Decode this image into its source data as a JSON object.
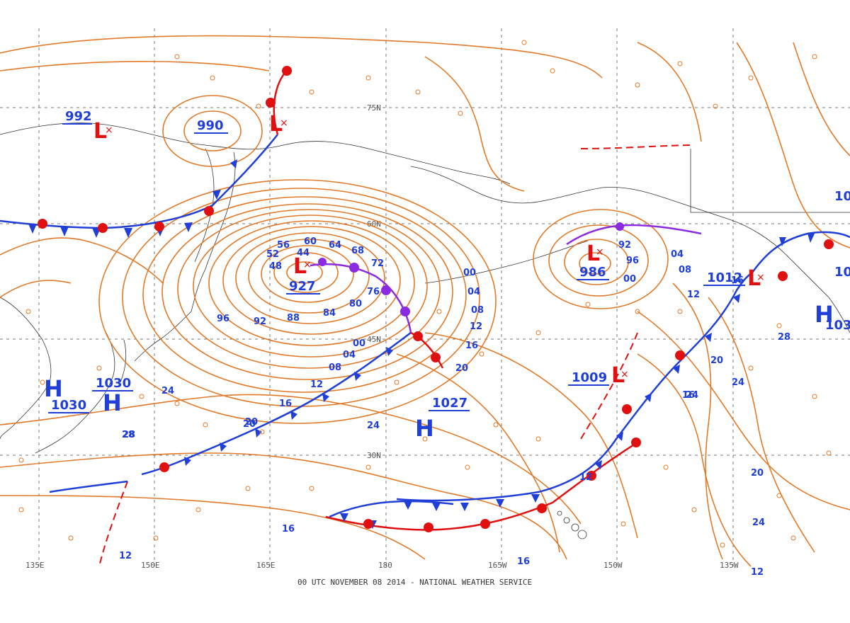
{
  "footer": "00 UTC NOVEMBER 08 2014 - NATIONAL WEATHER SERVICE",
  "colors": {
    "isobar": "#e07a2a",
    "high": "#1f3fd8",
    "low": "#e01010",
    "cold_front": "#1f3fd8",
    "warm_front": "#e01010",
    "occluded_front": "#8a2be2",
    "grid": "#777777"
  },
  "longitude_labels": [
    "135E",
    "150E",
    "165E",
    "180",
    "165W",
    "150W",
    "135W"
  ],
  "latitude_labels": [
    "75N",
    "60N",
    "45N",
    "30N"
  ],
  "pressure_centers": [
    {
      "type": "L",
      "value": "992"
    },
    {
      "type": "L",
      "value": "990"
    },
    {
      "type": "L",
      "value": "927"
    },
    {
      "type": "L",
      "value": "986"
    },
    {
      "type": "L",
      "value": "1012"
    },
    {
      "type": "L",
      "value": "1009"
    },
    {
      "type": "H",
      "value": "1030"
    },
    {
      "type": "H",
      "value": "1030"
    },
    {
      "type": "H",
      "value": "1027"
    },
    {
      "type": "H",
      "value": "103"
    },
    {
      "type": "H",
      "value": "10"
    },
    {
      "type": "H",
      "value": "10"
    }
  ],
  "isobar_labels": [
    "56",
    "60",
    "64",
    "68",
    "72",
    "76",
    "80",
    "84",
    "88",
    "92",
    "96",
    "44",
    "52",
    "48",
    "00",
    "04",
    "08",
    "12",
    "16",
    "20",
    "24",
    "28",
    "00",
    "04",
    "08",
    "12",
    "16",
    "20",
    "24",
    "92",
    "96",
    "00",
    "04",
    "08",
    "12",
    "16",
    "20",
    "24",
    "28",
    "12",
    "16",
    "20",
    "24",
    "12",
    "16",
    "12",
    "16",
    "20",
    "24",
    "28"
  ]
}
